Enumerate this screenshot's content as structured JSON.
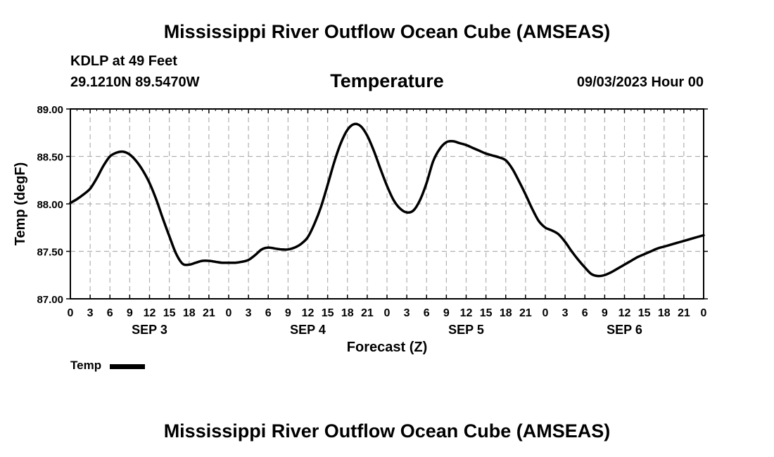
{
  "header": {
    "title": "Mississippi River Outflow Ocean Cube (AMSEAS)",
    "station": "KDLP at 49 Feet",
    "coordinates": "29.1210N  89.5470W",
    "subtitle": "Temperature",
    "datetime": "09/03/2023 Hour 00"
  },
  "footer": {
    "title": "Mississippi River Outflow Ocean Cube (AMSEAS)"
  },
  "legend": {
    "label": "Temp",
    "color": "#000000"
  },
  "chart_data": {
    "type": "line",
    "title": "Temperature",
    "xlabel": "Forecast (Z)",
    "ylabel": "Temp (degF)",
    "xlim": [
      0,
      96
    ],
    "ylim": [
      87.0,
      89.0
    ],
    "x_tick_labels": [
      "0",
      "3",
      "6",
      "9",
      "12",
      "15",
      "18",
      "21",
      "0",
      "3",
      "6",
      "9",
      "12",
      "15",
      "18",
      "21",
      "0",
      "3",
      "6",
      "9",
      "12",
      "15",
      "18",
      "21",
      "0",
      "3",
      "6",
      "9",
      "12",
      "15",
      "18",
      "21",
      "0"
    ],
    "y_tick_labels": [
      "89.00",
      "88.50",
      "88.00",
      "87.50",
      "87.00"
    ],
    "y_ticks": [
      89.0,
      88.5,
      88.0,
      87.5,
      87.0
    ],
    "day_labels": [
      {
        "label": "SEP 3",
        "hour": 12
      },
      {
        "label": "SEP 4",
        "hour": 36
      },
      {
        "label": "SEP 5",
        "hour": 60
      },
      {
        "label": "SEP 6",
        "hour": 84
      }
    ],
    "grid": true,
    "legend_position": "bottom-left",
    "series": [
      {
        "name": "Temp",
        "color": "#000000",
        "x": [
          0,
          1,
          2,
          3,
          4,
          5,
          6,
          7,
          8,
          9,
          10,
          11,
          12,
          13,
          14,
          15,
          16,
          17,
          18,
          19,
          20,
          21,
          22,
          23,
          24,
          25,
          26,
          27,
          28,
          29,
          30,
          31,
          32,
          33,
          34,
          35,
          36,
          37,
          38,
          39,
          40,
          41,
          42,
          43,
          44,
          45,
          46,
          47,
          48,
          49,
          50,
          51,
          52,
          53,
          54,
          55,
          56,
          57,
          58,
          59,
          60,
          61,
          62,
          63,
          64,
          65,
          66,
          67,
          68,
          69,
          70,
          71,
          72,
          73,
          74,
          75,
          76,
          77,
          78,
          79,
          80,
          81,
          82,
          83,
          84,
          85,
          86,
          87,
          88,
          89,
          90,
          91,
          92,
          93,
          94,
          95,
          96
        ],
        "values": [
          88.01,
          88.05,
          88.1,
          88.16,
          88.27,
          88.4,
          88.5,
          88.54,
          88.55,
          88.52,
          88.45,
          88.35,
          88.22,
          88.05,
          87.85,
          87.66,
          87.48,
          87.37,
          87.36,
          87.38,
          87.4,
          87.4,
          87.39,
          87.38,
          87.38,
          87.38,
          87.39,
          87.41,
          87.46,
          87.52,
          87.54,
          87.53,
          87.52,
          87.52,
          87.54,
          87.58,
          87.65,
          87.79,
          87.97,
          88.2,
          88.44,
          88.64,
          88.78,
          88.84,
          88.82,
          88.72,
          88.56,
          88.37,
          88.19,
          88.04,
          87.95,
          87.91,
          87.93,
          88.04,
          88.22,
          88.45,
          88.58,
          88.65,
          88.66,
          88.64,
          88.62,
          88.59,
          88.56,
          88.53,
          88.51,
          88.49,
          88.46,
          88.37,
          88.24,
          88.1,
          87.95,
          87.82,
          87.75,
          87.72,
          87.68,
          87.6,
          87.5,
          87.41,
          87.33,
          87.26,
          87.24,
          87.25,
          87.28,
          87.32,
          87.36,
          87.4,
          87.44,
          87.47,
          87.5,
          87.53,
          87.55,
          87.57,
          87.59,
          87.61,
          87.63,
          87.65,
          87.67
        ]
      }
    ]
  }
}
